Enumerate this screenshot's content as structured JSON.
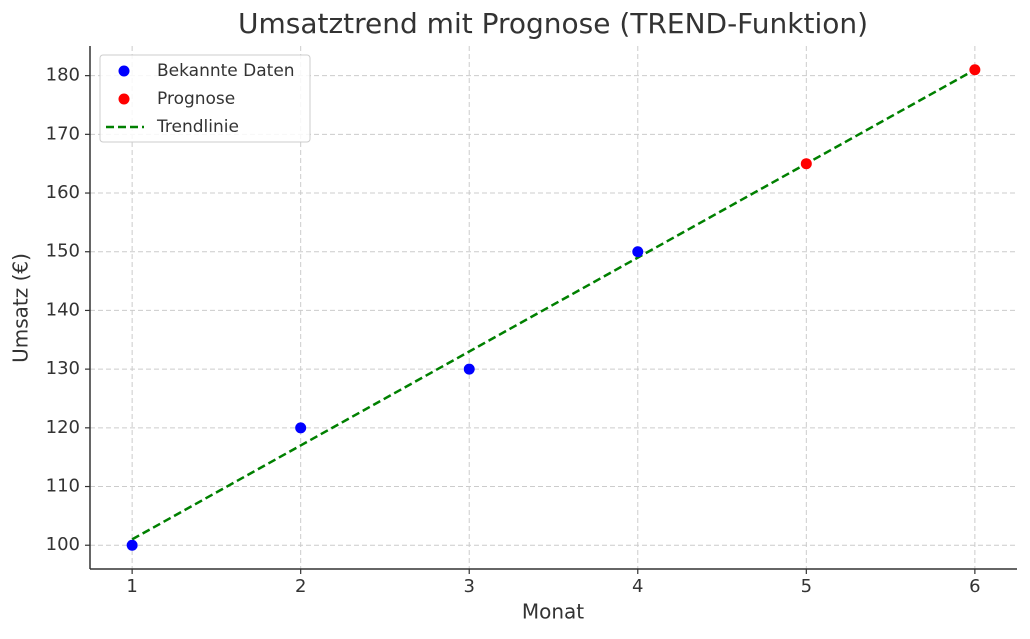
{
  "chart_data": {
    "type": "scatter",
    "title": "Umsatztrend mit Prognose (TREND-Funktion)",
    "x_label": "Monat",
    "y_label": "Umsatz (€)",
    "x": [
      1,
      2,
      3,
      4,
      5,
      6
    ],
    "series": [
      {
        "name": "Bekannte Daten",
        "color": "#0000ff",
        "mode": "markers",
        "values": [
          100,
          120,
          130,
          150,
          null,
          null
        ]
      },
      {
        "name": "Prognose",
        "color": "#ff0000",
        "mode": "markers",
        "values": [
          null,
          null,
          null,
          null,
          165,
          181
        ]
      },
      {
        "name": "Trendlinie",
        "color": "#008000",
        "mode": "dashed-line",
        "values": [
          101,
          117,
          133,
          149,
          165,
          181
        ]
      }
    ],
    "xlim": [
      0.75,
      6.25
    ],
    "xticks": [
      1,
      2,
      3,
      4,
      5,
      6
    ],
    "ylim": [
      95.95,
      185.05
    ],
    "yticks": [
      100,
      110,
      120,
      130,
      140,
      150,
      160,
      170,
      180
    ],
    "grid": true,
    "legend": "upper left"
  }
}
